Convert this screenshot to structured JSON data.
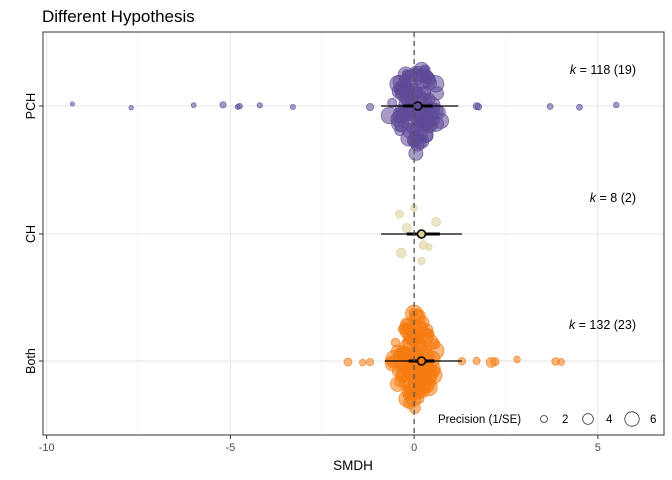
{
  "chart_data": {
    "type": "orchard",
    "title": "Different Hypothesis",
    "xlabel": "SMDH",
    "ylabel": "",
    "xlim": [
      -10.1,
      6.8
    ],
    "xticks": [
      -10,
      -5,
      0,
      5
    ],
    "xtick_labels": [
      "-10",
      "-5",
      "0",
      "5"
    ],
    "grid": true,
    "reference_line_x": 0,
    "categories": [
      "PCH",
      "CH",
      "Both"
    ],
    "groups": [
      {
        "name": "PCH",
        "color": "#5e4a98",
        "estimate": 0.1,
        "ci": [
          -0.3,
          0.5
        ],
        "pi": [
          -0.9,
          1.2
        ],
        "k_label": "k",
        "k_text": " = 118 (19)",
        "outliers": [
          {
            "x": -9.3,
            "p": 0.3
          },
          {
            "x": -7.7,
            "p": 0.4
          },
          {
            "x": -6.0,
            "p": 0.5
          },
          {
            "x": -5.2,
            "p": 0.9
          },
          {
            "x": -4.8,
            "p": 0.6
          },
          {
            "x": -4.75,
            "p": 0.7
          },
          {
            "x": -4.2,
            "p": 0.6
          },
          {
            "x": -3.3,
            "p": 0.6
          },
          {
            "x": -1.2,
            "p": 1.2
          },
          {
            "x": 1.7,
            "p": 1.1
          },
          {
            "x": 1.75,
            "p": 1.0
          },
          {
            "x": 3.7,
            "p": 0.8
          },
          {
            "x": 4.5,
            "p": 0.8
          },
          {
            "x": 5.5,
            "p": 0.7
          }
        ],
        "cluster": {
          "n": 104,
          "center": 0.05,
          "spread": 0.55,
          "pmin": 1.5,
          "pmax": 4.2,
          "height": 1.0
        }
      },
      {
        "name": "CH",
        "color": "#d8cf98",
        "estimate": 0.2,
        "ci": [
          -0.2,
          0.7
        ],
        "pi": [
          -0.9,
          1.3
        ],
        "k_label": "k",
        "k_text": " = 8 (2)",
        "outliers": [
          {
            "x": -0.2,
            "p": 1.8
          },
          {
            "x": 0.4,
            "p": 1.0
          },
          {
            "x": -0.4,
            "p": 1.4
          },
          {
            "x": 0.2,
            "p": 1.2
          },
          {
            "x": 0.6,
            "p": 1.7
          },
          {
            "x": -0.35,
            "p": 1.9
          },
          {
            "x": 0.0,
            "p": 1.1
          },
          {
            "x": 0.25,
            "p": 1.6
          }
        ],
        "cluster": {
          "n": 0,
          "center": 0,
          "spread": 0,
          "pmin": 1,
          "pmax": 1,
          "height": 0
        }
      },
      {
        "name": "Both",
        "color": "#f57b12",
        "estimate": 0.2,
        "ci": [
          -0.15,
          0.55
        ],
        "pi": [
          -0.8,
          1.3
        ],
        "k_label": "k",
        "k_text": " = 132 (23)",
        "outliers": [
          {
            "x": -1.8,
            "p": 1.4
          },
          {
            "x": -1.2,
            "p": 1.2
          },
          {
            "x": 1.7,
            "p": 1.2
          },
          {
            "x": 2.1,
            "p": 2.0
          },
          {
            "x": 2.2,
            "p": 1.5
          },
          {
            "x": 2.8,
            "p": 1.0
          },
          {
            "x": 3.85,
            "p": 1.3
          },
          {
            "x": 4.0,
            "p": 1.1
          },
          {
            "x": -1.4,
            "p": 1.0
          },
          {
            "x": 1.3,
            "p": 1.3
          }
        ],
        "cluster": {
          "n": 122,
          "center": 0.0,
          "spread": 0.5,
          "pmin": 1.5,
          "pmax": 4.3,
          "height": 1.05
        }
      }
    ],
    "legend": {
      "title": "Precision (1/SE)",
      "position": "bottom-right",
      "entries": [
        {
          "label": "2",
          "value": 2
        },
        {
          "label": "4",
          "value": 4
        },
        {
          "label": "6",
          "value": 6
        }
      ]
    }
  }
}
